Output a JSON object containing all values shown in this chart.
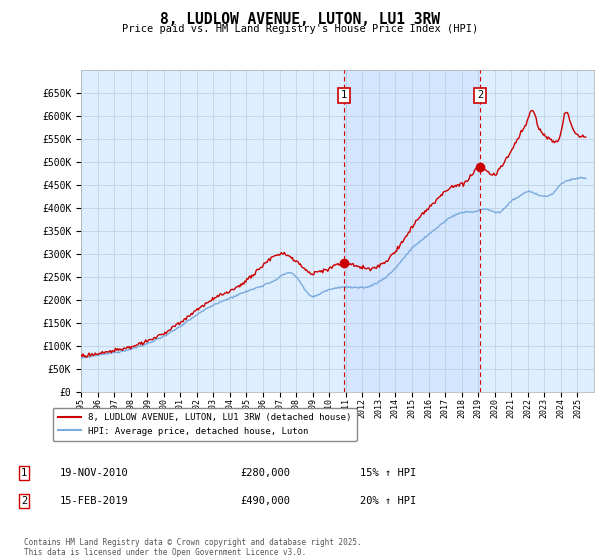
{
  "title": "8, LUDLOW AVENUE, LUTON, LU1 3RW",
  "subtitle": "Price paid vs. HM Land Registry's House Price Index (HPI)",
  "ylim": [
    0,
    700000
  ],
  "yticks": [
    0,
    50000,
    100000,
    150000,
    200000,
    250000,
    300000,
    350000,
    400000,
    450000,
    500000,
    550000,
    600000,
    650000
  ],
  "hpi_color": "#7aaadd",
  "price_color": "#cc0000",
  "bg_color": "#ddeeff",
  "grid_color": "#bbccdd",
  "marker1_date": 2010.88,
  "marker1_price": 280000,
  "marker2_date": 2019.12,
  "marker2_price": 490000,
  "legend_line1": "8, LUDLOW AVENUE, LUTON, LU1 3RW (detached house)",
  "legend_line2": "HPI: Average price, detached house, Luton",
  "table_row1": [
    "1",
    "19-NOV-2010",
    "£280,000",
    "15% ↑ HPI"
  ],
  "table_row2": [
    "2",
    "15-FEB-2019",
    "£490,000",
    "20% ↑ HPI"
  ],
  "footer": "Contains HM Land Registry data © Crown copyright and database right 2025.\nThis data is licensed under the Open Government Licence v3.0.",
  "xstart": 1995,
  "xend": 2026
}
